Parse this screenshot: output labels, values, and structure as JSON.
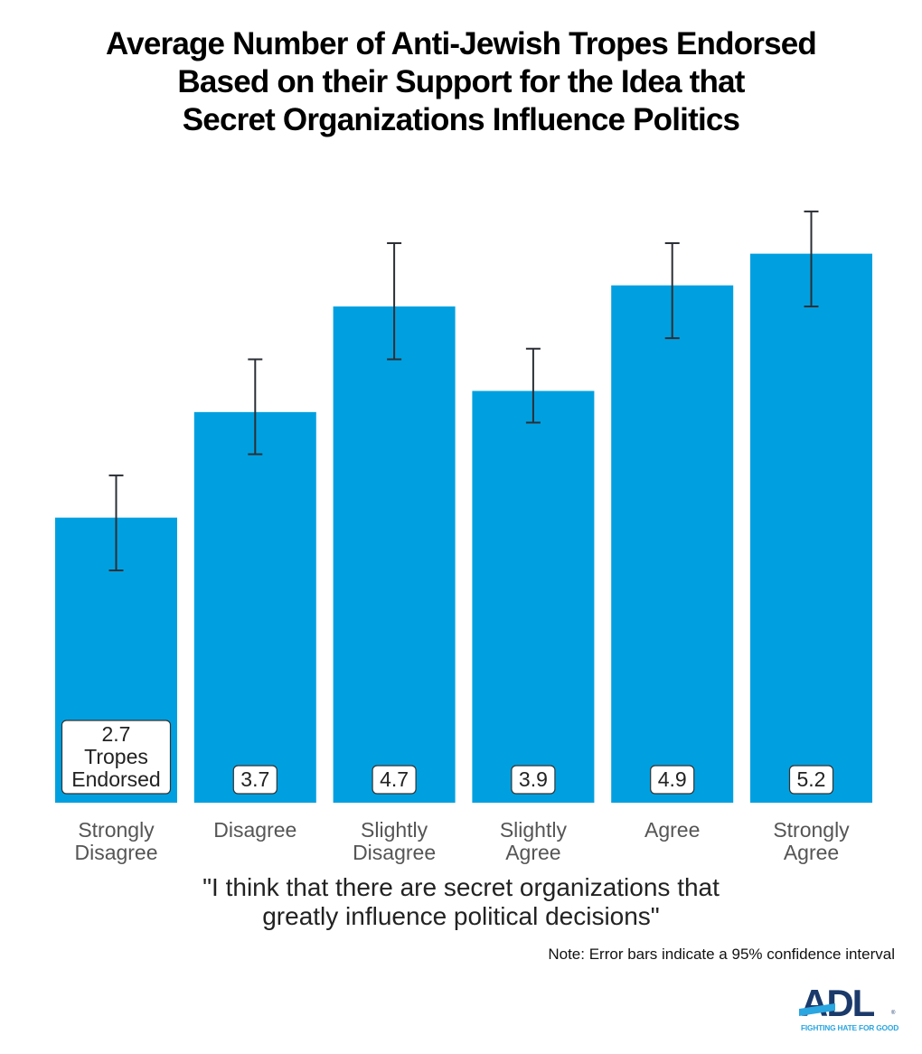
{
  "title_lines": [
    "Average Number of Anti-Jewish Tropes Endorsed",
    "Based on their Support for the Idea that",
    "Secret Organizations Influence Politics"
  ],
  "chart_data": {
    "type": "bar",
    "title": "Average Number of Anti-Jewish Tropes Endorsed Based on their Support for the Idea that Secret Organizations Influence Politics",
    "categories": [
      [
        "Strongly",
        "Disagree"
      ],
      [
        "Disagree"
      ],
      [
        "Slightly",
        "Disagree"
      ],
      [
        "Slightly",
        "Agree"
      ],
      [
        "Agree"
      ],
      [
        "Strongly",
        "Agree"
      ]
    ],
    "values": [
      2.7,
      3.7,
      4.7,
      3.9,
      4.9,
      5.2
    ],
    "error_low": [
      2.2,
      3.3,
      4.2,
      3.6,
      4.4,
      4.7
    ],
    "error_high": [
      3.1,
      4.2,
      5.3,
      4.3,
      5.3,
      5.6
    ],
    "first_label_suffix": [
      "Tropes",
      "Endorsed"
    ],
    "xlabel_lines": [
      "\"I think that there are secret organizations that",
      "greatly influence political decisions\""
    ],
    "ylabel": "",
    "ylim": [
      0,
      5.8
    ],
    "grid": false,
    "bar_color": "#00a0e0",
    "error_bar_color": "#2b2f36"
  },
  "note": "Note: Error bars indicate a 95% confidence interval",
  "logo": {
    "text": "ADL",
    "tagline": "FIGHTING HATE FOR GOOD",
    "navy": "#1b3a6b",
    "blue": "#2aa6e0"
  }
}
